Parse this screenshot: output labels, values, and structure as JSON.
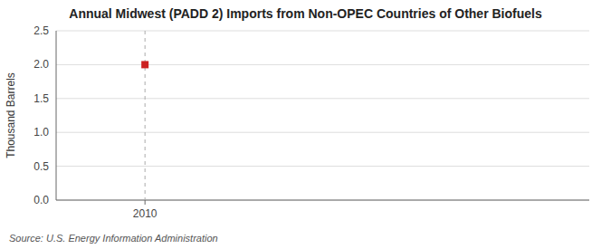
{
  "chart_data": {
    "type": "scatter",
    "title": "Annual Midwest (PADD 2) Imports from Non-OPEC Countries of Other Biofuels",
    "ylabel": "Thousand Barrels",
    "source": "Source: U.S. Energy Information Administration",
    "x": [
      2010
    ],
    "values": [
      2.0
    ],
    "color": "#cc2222",
    "marker": "square",
    "vlines": [
      2010
    ],
    "xlim": [
      2009.3,
      2013.5
    ],
    "xticks": [
      2010
    ],
    "ylim": [
      0.0,
      2.5
    ],
    "yticks": [
      {
        "value": 0,
        "label": "0.0"
      },
      0.5,
      {
        "value": 1,
        "label": "1.0"
      },
      1.5,
      {
        "value": 2,
        "label": "2.0"
      },
      2.5
    ],
    "grid": true
  }
}
